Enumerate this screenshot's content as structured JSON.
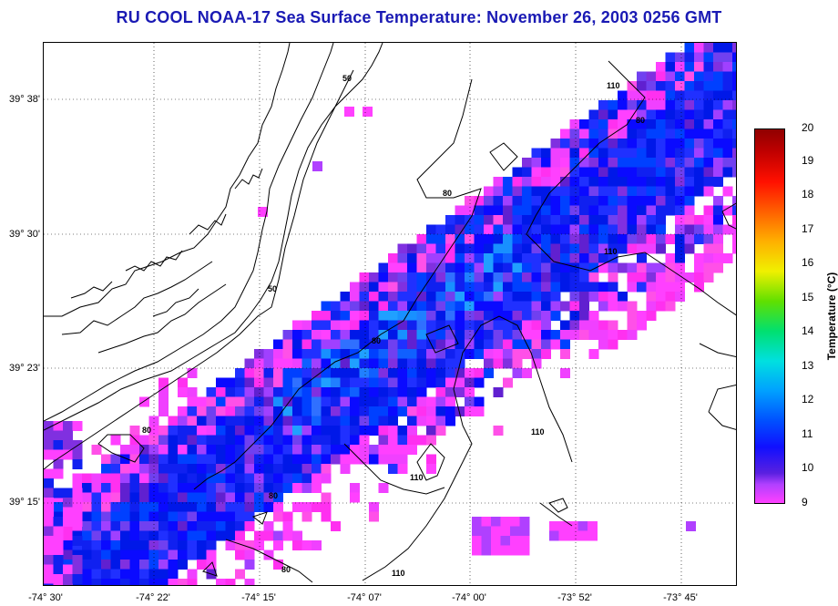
{
  "title": "RU COOL  NOAA-17  Sea Surface Temperature:  November 26, 2003 0256 GMT",
  "latitude_labels": [
    "39° 38'",
    "39° 30'",
    "39° 23'",
    "39° 15'"
  ],
  "longitude_labels": [
    "-74° 30'",
    "-74° 22'",
    "-74° 15'",
    "-74° 07'",
    "-74° 00'",
    "-73° 52'",
    "-73° 45'"
  ],
  "colorbar": {
    "label": "Temperature (°C)",
    "ticks": [
      "20",
      "19",
      "18",
      "17",
      "16",
      "15",
      "14",
      "13",
      "12",
      "11",
      "10",
      "9"
    ],
    "min": 9,
    "max": 20
  },
  "contour_labels": [
    "50",
    "50",
    "110",
    "80",
    "80",
    "110",
    "80",
    "80",
    "110",
    "110",
    "80",
    "80",
    "110"
  ],
  "colors": {
    "title": "#1a1ab4",
    "coast": "#000000",
    "sst_cold": "#ff40ff",
    "sst_mid": "#1010ff",
    "sst_warm": "#20a0ff"
  }
}
